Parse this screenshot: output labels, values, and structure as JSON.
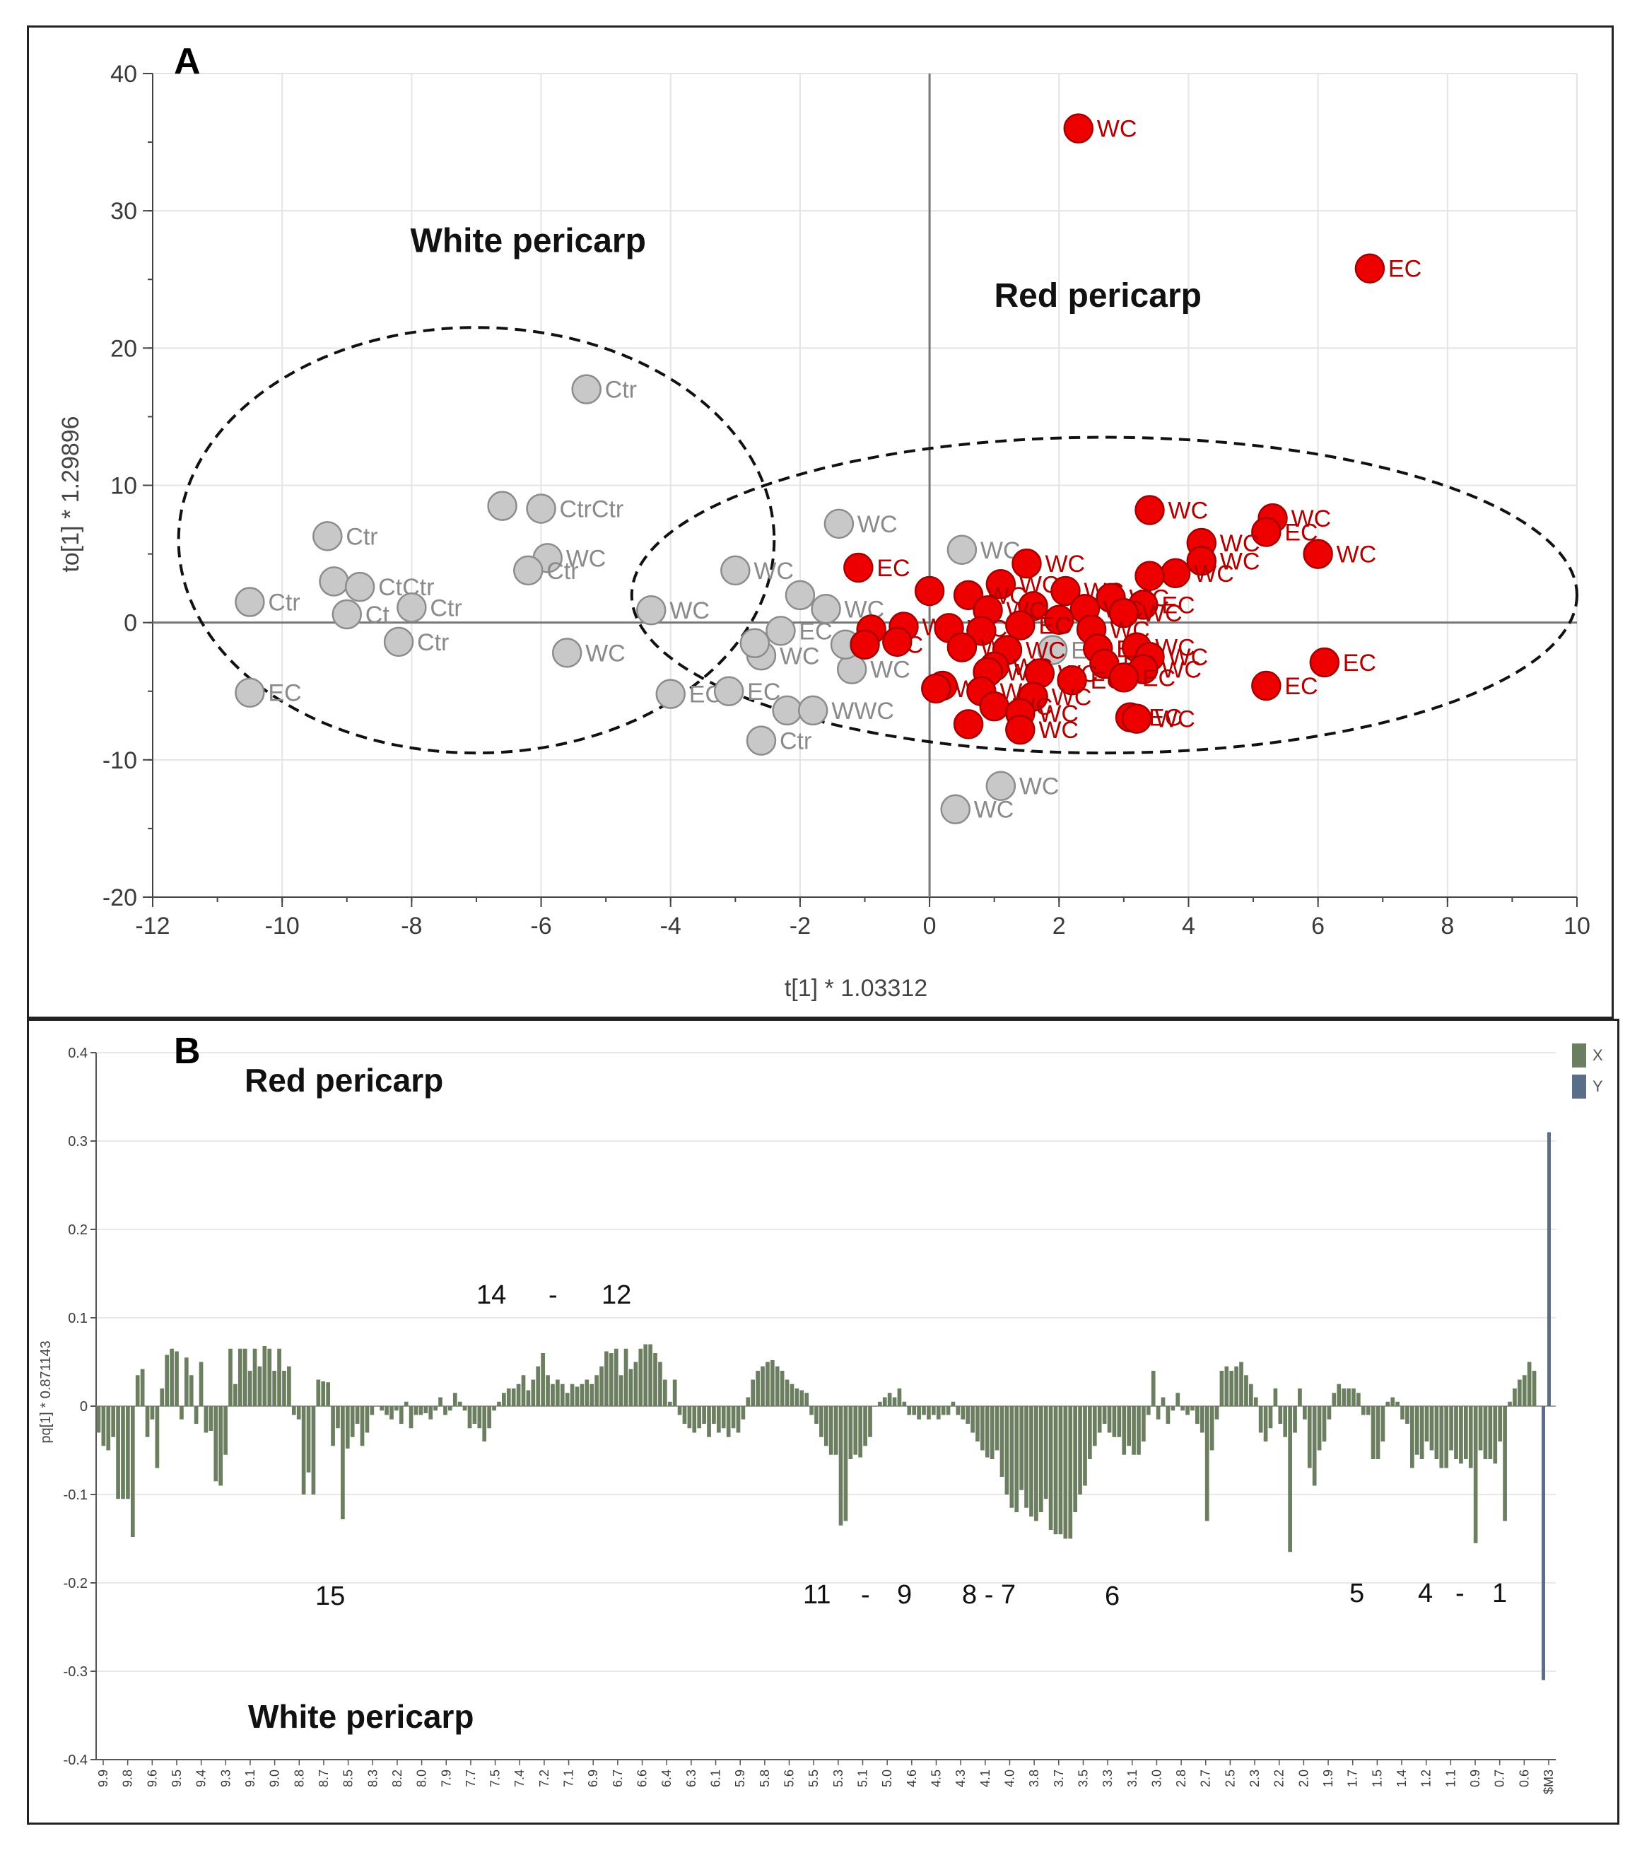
{
  "chart_data": [
    {
      "panel": "A",
      "type": "scatter",
      "title": "",
      "panel_letter": "A",
      "xlabel": "t[1] * 1.03312",
      "ylabel": "to[1] * 1.29896",
      "xlim": [
        -12,
        10
      ],
      "ylim": [
        -20,
        40
      ],
      "xticks": [
        -12,
        -10,
        -8,
        -6,
        -4,
        -2,
        0,
        2,
        4,
        6,
        8,
        10
      ],
      "yticks": [
        -20,
        -10,
        0,
        10,
        20,
        30,
        40
      ],
      "grid": true,
      "annotations": [
        {
          "text": "White pericarp",
          "x": -6.2,
          "y": 27
        },
        {
          "text": "Red pericarp",
          "x": 2.6,
          "y": 23
        }
      ],
      "ellipses": [
        {
          "group": "White pericarp",
          "cx": -7.0,
          "cy": 6,
          "rx": 4.6,
          "ry": 15.5
        },
        {
          "group": "Red pericarp",
          "cx": 2.7,
          "cy": 2,
          "rx": 7.3,
          "ry": 11.5
        }
      ],
      "series": [
        {
          "name": "White pericarp",
          "color": "#c8c8c8",
          "label_color": "#8a8a8a",
          "points": [
            {
              "x": -5.3,
              "y": 17,
              "label": "Ctr"
            },
            {
              "x": -6.6,
              "y": 8.5,
              "label": ""
            },
            {
              "x": -6.0,
              "y": 8.3,
              "label": "CtrCtr"
            },
            {
              "x": -9.3,
              "y": 6.3,
              "label": "Ctr"
            },
            {
              "x": -5.9,
              "y": 4.7,
              "label": "WC"
            },
            {
              "x": -6.2,
              "y": 3.8,
              "label": "Ctr"
            },
            {
              "x": -9.2,
              "y": 3.0,
              "label": ""
            },
            {
              "x": -8.8,
              "y": 2.6,
              "label": "CtCtr"
            },
            {
              "x": -10.5,
              "y": 1.5,
              "label": "Ctr"
            },
            {
              "x": -8.0,
              "y": 1.1,
              "label": "Ctr"
            },
            {
              "x": -9.0,
              "y": 0.6,
              "label": "Ct"
            },
            {
              "x": -8.2,
              "y": -1.4,
              "label": "Ctr"
            },
            {
              "x": -5.6,
              "y": -2.2,
              "label": "WC"
            },
            {
              "x": -10.5,
              "y": -5.1,
              "label": "EC"
            },
            {
              "x": -4.3,
              "y": 0.9,
              "label": "WC"
            },
            {
              "x": -4.0,
              "y": -5.2,
              "label": "EC"
            },
            {
              "x": -3.0,
              "y": 3.8,
              "label": "WC"
            },
            {
              "x": -3.1,
              "y": -5.0,
              "label": "EC"
            },
            {
              "x": -2.6,
              "y": -8.6,
              "label": "Ctr"
            },
            {
              "x": -2.2,
              "y": -6.4,
              "label": ""
            },
            {
              "x": -1.8,
              "y": -6.4,
              "label": "WWC"
            },
            {
              "x": -2.0,
              "y": 2.0,
              "label": ""
            },
            {
              "x": -1.6,
              "y": 1.0,
              "label": "WC"
            },
            {
              "x": -1.4,
              "y": 7.2,
              "label": "WC"
            },
            {
              "x": -2.6,
              "y": -2.4,
              "label": "WC"
            },
            {
              "x": -2.3,
              "y": -0.6,
              "label": "EC"
            },
            {
              "x": -2.7,
              "y": -1.5,
              "label": ""
            },
            {
              "x": -1.2,
              "y": -3.4,
              "label": "WC"
            },
            {
              "x": -1.3,
              "y": -1.6,
              "label": ""
            },
            {
              "x": 0.5,
              "y": 5.3,
              "label": "WC"
            },
            {
              "x": 1.1,
              "y": -11.9,
              "label": "WC"
            },
            {
              "x": 0.4,
              "y": -13.6,
              "label": "WC"
            },
            {
              "x": 1.9,
              "y": -2.0,
              "label": "EC"
            }
          ]
        },
        {
          "name": "Red pericarp",
          "color": "#ee0000",
          "label_color": "#b00000",
          "points": [
            {
              "x": 2.3,
              "y": 36,
              "label": "WC"
            },
            {
              "x": 6.8,
              "y": 25.8,
              "label": "EC"
            },
            {
              "x": 3.4,
              "y": 8.2,
              "label": "WC"
            },
            {
              "x": 5.3,
              "y": 7.6,
              "label": "WC"
            },
            {
              "x": 5.2,
              "y": 6.6,
              "label": "EC"
            },
            {
              "x": 4.2,
              "y": 5.8,
              "label": "WC"
            },
            {
              "x": 6.0,
              "y": 5.0,
              "label": "WC"
            },
            {
              "x": 4.2,
              "y": 4.5,
              "label": "WC"
            },
            {
              "x": 1.5,
              "y": 4.3,
              "label": "WC"
            },
            {
              "x": 3.8,
              "y": 3.6,
              "label": "WC"
            },
            {
              "x": 3.4,
              "y": 3.4,
              "label": ""
            },
            {
              "x": -1.1,
              "y": 4.0,
              "label": "EC"
            },
            {
              "x": 1.1,
              "y": 2.8,
              "label": "WC"
            },
            {
              "x": 0.0,
              "y": 2.3,
              "label": ""
            },
            {
              "x": 0.6,
              "y": 2.0,
              "label": "WC"
            },
            {
              "x": 2.1,
              "y": 2.3,
              "label": "WC"
            },
            {
              "x": 2.8,
              "y": 1.8,
              "label": "WC"
            },
            {
              "x": 3.3,
              "y": 1.3,
              "label": "EC"
            },
            {
              "x": 1.6,
              "y": 1.2,
              "label": ""
            },
            {
              "x": 2.4,
              "y": 1.0,
              "label": "WC"
            },
            {
              "x": 0.9,
              "y": 0.9,
              "label": "WC"
            },
            {
              "x": 3.0,
              "y": 0.7,
              "label": "WC"
            },
            {
              "x": 2.0,
              "y": 0.2,
              "label": ""
            },
            {
              "x": 1.4,
              "y": -0.2,
              "label": "EC"
            },
            {
              "x": -0.9,
              "y": -0.5,
              "label": ""
            },
            {
              "x": -0.4,
              "y": -0.3,
              "label": "WC"
            },
            {
              "x": 0.3,
              "y": -0.4,
              "label": "WC"
            },
            {
              "x": 0.8,
              "y": -0.6,
              "label": ""
            },
            {
              "x": 2.5,
              "y": -0.5,
              "label": "WC"
            },
            {
              "x": -1.0,
              "y": -1.6,
              "label": "WC"
            },
            {
              "x": -0.5,
              "y": -1.4,
              "label": ""
            },
            {
              "x": 0.5,
              "y": -1.8,
              "label": "WC"
            },
            {
              "x": 1.2,
              "y": -2.0,
              "label": "WC"
            },
            {
              "x": 2.6,
              "y": -1.9,
              "label": "EC"
            },
            {
              "x": 3.2,
              "y": -1.8,
              "label": "WC"
            },
            {
              "x": 3.4,
              "y": -2.5,
              "label": "WC"
            },
            {
              "x": 2.7,
              "y": -3.0,
              "label": "EC"
            },
            {
              "x": 1.0,
              "y": -3.2,
              "label": "WC"
            },
            {
              "x": 0.9,
              "y": -3.6,
              "label": "WC"
            },
            {
              "x": 1.7,
              "y": -3.7,
              "label": "WC"
            },
            {
              "x": 3.3,
              "y": -3.4,
              "label": "WC"
            },
            {
              "x": 2.2,
              "y": -4.2,
              "label": "EC"
            },
            {
              "x": 3.0,
              "y": -4.0,
              "label": "EC"
            },
            {
              "x": 0.2,
              "y": -4.6,
              "label": ""
            },
            {
              "x": 0.1,
              "y": -4.8,
              "label": "WC"
            },
            {
              "x": 0.8,
              "y": -5.0,
              "label": "WC"
            },
            {
              "x": 1.6,
              "y": -5.4,
              "label": "WC"
            },
            {
              "x": 5.2,
              "y": -4.6,
              "label": "EC"
            },
            {
              "x": 6.1,
              "y": -2.9,
              "label": "EC"
            },
            {
              "x": 1.0,
              "y": -6.1,
              "label": "WC"
            },
            {
              "x": 1.4,
              "y": -6.6,
              "label": "WC"
            },
            {
              "x": 3.1,
              "y": -6.9,
              "label": "EC"
            },
            {
              "x": 3.2,
              "y": -7.0,
              "label": "WC"
            },
            {
              "x": 0.6,
              "y": -7.4,
              "label": ""
            },
            {
              "x": 1.4,
              "y": -7.8,
              "label": "WC"
            }
          ]
        }
      ]
    },
    {
      "panel": "B",
      "type": "bar",
      "panel_letter": "B",
      "title": "",
      "xlabel": "",
      "ylabel": "pq[1] * 0.871143",
      "ylim": [
        -0.4,
        0.4
      ],
      "yticks": [
        -0.4,
        -0.3,
        -0.2,
        -0.1,
        0,
        0.1,
        0.2,
        0.3,
        0.4
      ],
      "grid": true,
      "legend": [
        {
          "name": "X",
          "color": "#6b7f60"
        },
        {
          "name": "Y",
          "color": "#5a6e8a"
        }
      ],
      "x_tick_labels": [
        "9.9",
        "9.8",
        "9.6",
        "9.5",
        "9.4",
        "9.3",
        "9.1",
        "9.0",
        "8.8",
        "8.7",
        "8.5",
        "8.3",
        "8.2",
        "8.0",
        "7.9",
        "7.7",
        "7.5",
        "7.4",
        "7.2",
        "7.1",
        "6.9",
        "6.7",
        "6.6",
        "6.4",
        "6.3",
        "6.1",
        "5.9",
        "5.8",
        "5.6",
        "5.5",
        "5.3",
        "5.1",
        "5.0",
        "4.6",
        "4.5",
        "4.3",
        "4.1",
        "4.0",
        "3.8",
        "3.7",
        "3.5",
        "3.3",
        "3.1",
        "3.0",
        "2.8",
        "2.7",
        "2.5",
        "2.3",
        "2.2",
        "2.0",
        "1.9",
        "1.7",
        "1.5",
        "1.4",
        "1.2",
        "1.1",
        "0.9",
        "0.7",
        "0.6",
        "$M3"
      ],
      "annotations_top": [
        {
          "text": "Red pericarp"
        },
        {
          "text": "14"
        },
        {
          "text": "-"
        },
        {
          "text": "12"
        }
      ],
      "annotations_bottom": [
        {
          "text": "15"
        },
        {
          "text": "11"
        },
        {
          "text": "-"
        },
        {
          "text": "9"
        },
        {
          "text": "8 - 7"
        },
        {
          "text": "6"
        },
        {
          "text": "5"
        },
        {
          "text": "4"
        },
        {
          "text": "-"
        },
        {
          "text": "1"
        },
        {
          "text": "White pericarp"
        }
      ],
      "series": [
        {
          "name": "X",
          "values": [
            -0.03,
            -0.045,
            -0.05,
            -0.035,
            -0.105,
            -0.105,
            -0.105,
            -0.148,
            0.035,
            0.042,
            -0.035,
            -0.015,
            -0.07,
            0.02,
            0.058,
            0.065,
            0.062,
            -0.015,
            0.055,
            0.035,
            -0.02,
            0.05,
            -0.03,
            -0.028,
            -0.085,
            -0.09,
            -0.055,
            0.065,
            0.025,
            0.065,
            0.065,
            0.04,
            0.065,
            0.045,
            0.068,
            0.065,
            0.04,
            0.065,
            0.04,
            0.045,
            -0.01,
            -0.015,
            -0.1,
            -0.075,
            -0.1,
            0.03,
            0.028,
            0.027,
            -0.045,
            -0.025,
            -0.128,
            -0.048,
            -0.035,
            -0.02,
            -0.045,
            -0.03,
            -0.01,
            0.0,
            -0.005,
            -0.01,
            -0.015,
            -0.005,
            -0.02,
            0.005,
            -0.025,
            -0.01,
            -0.01,
            -0.008,
            -0.015,
            -0.005,
            0.01,
            -0.01,
            -0.005,
            0.015,
            0.005,
            -0.005,
            -0.025,
            -0.02,
            -0.025,
            -0.04,
            -0.025,
            -0.005,
            0.005,
            0.015,
            0.02,
            0.02,
            0.025,
            0.035,
            0.018,
            0.03,
            0.045,
            0.06,
            0.035,
            0.025,
            0.03,
            0.025,
            0.015,
            0.025,
            0.022,
            0.025,
            0.03,
            0.025,
            0.035,
            0.045,
            0.062,
            0.06,
            0.065,
            0.035,
            0.065,
            0.042,
            0.05,
            0.065,
            0.07,
            0.07,
            0.06,
            0.05,
            0.03,
            0.005,
            0.03,
            -0.01,
            -0.02,
            -0.025,
            -0.03,
            -0.025,
            -0.02,
            -0.035,
            -0.02,
            -0.03,
            -0.025,
            -0.035,
            -0.025,
            -0.03,
            -0.015,
            0.01,
            0.03,
            0.04,
            0.045,
            0.05,
            0.052,
            0.045,
            0.04,
            0.03,
            0.025,
            0.02,
            0.018,
            0.015,
            -0.01,
            -0.02,
            -0.035,
            -0.045,
            -0.055,
            -0.055,
            -0.135,
            -0.13,
            -0.06,
            -0.055,
            -0.058,
            -0.045,
            -0.035,
            0.0,
            0.005,
            0.01,
            0.015,
            0.01,
            0.02,
            0.005,
            -0.01,
            -0.01,
            -0.015,
            -0.01,
            -0.015,
            -0.01,
            -0.015,
            -0.01,
            -0.01,
            0.005,
            -0.01,
            -0.015,
            -0.02,
            -0.03,
            -0.04,
            -0.05,
            -0.058,
            -0.06,
            -0.05,
            -0.08,
            -0.1,
            -0.115,
            -0.12,
            -0.095,
            -0.115,
            -0.125,
            -0.13,
            -0.12,
            -0.105,
            -0.14,
            -0.145,
            -0.145,
            -0.15,
            -0.15,
            -0.12,
            -0.1,
            -0.09,
            -0.06,
            -0.045,
            -0.03,
            -0.02,
            -0.03,
            -0.035,
            -0.035,
            -0.055,
            -0.045,
            -0.055,
            -0.055,
            -0.04,
            -0.01,
            0.04,
            -0.015,
            0.01,
            -0.02,
            -0.005,
            0.015,
            -0.005,
            -0.01,
            -0.005,
            -0.02,
            -0.03,
            -0.13,
            -0.05,
            -0.015,
            0.04,
            0.045,
            0.04,
            0.045,
            0.05,
            0.035,
            0.025,
            0.01,
            -0.03,
            -0.04,
            -0.025,
            0.02,
            -0.02,
            -0.035,
            -0.165,
            -0.03,
            0.02,
            -0.015,
            -0.07,
            -0.09,
            -0.05,
            -0.04,
            -0.015,
            0.015,
            0.025,
            0.02,
            0.02,
            0.02,
            0.015,
            -0.01,
            -0.01,
            -0.06,
            -0.06,
            -0.04,
            0.005,
            0.01,
            0.005,
            -0.015,
            -0.02,
            -0.07,
            -0.055,
            -0.06,
            -0.04,
            -0.05,
            -0.06,
            -0.07,
            -0.07,
            -0.05,
            -0.06,
            -0.065,
            -0.06,
            -0.07,
            -0.155,
            -0.05,
            -0.06,
            -0.06,
            -0.065,
            -0.04,
            -0.13,
            0.005,
            0.02,
            0.03,
            0.035,
            0.05,
            0.04
          ]
        },
        {
          "name": "Y",
          "values": [
            0.31,
            -0.31
          ]
        }
      ]
    }
  ]
}
